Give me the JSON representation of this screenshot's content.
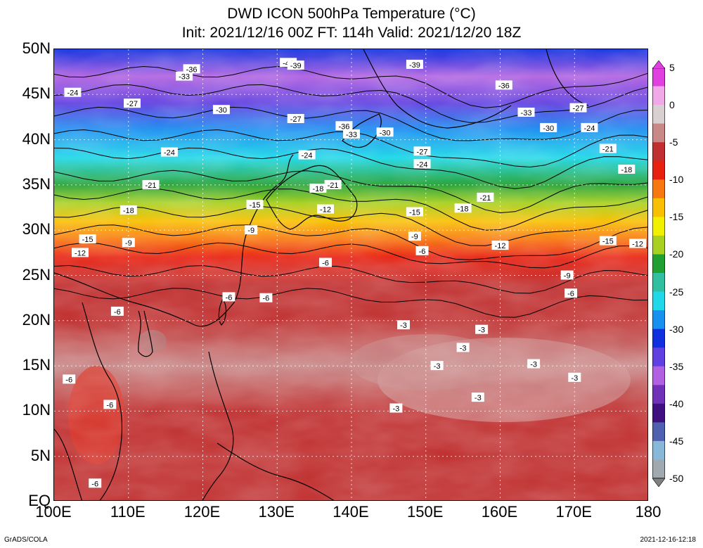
{
  "title": {
    "line1": "DWD ICON 500hPa Temperature (°C)",
    "line2": "Init: 2021/12/16 00Z  FT: 114h  Valid: 2021/12/20 18Z"
  },
  "axes": {
    "lat_labels": [
      "50N",
      "45N",
      "40N",
      "35N",
      "30N",
      "25N",
      "20N",
      "15N",
      "10N",
      "5N",
      "EQ"
    ],
    "lat_values": [
      50,
      45,
      40,
      35,
      30,
      25,
      20,
      15,
      10,
      5,
      0
    ],
    "lon_labels": [
      "100E",
      "110E",
      "120E",
      "130E",
      "140E",
      "150E",
      "160E",
      "170E",
      "180"
    ],
    "lon_values": [
      100,
      110,
      120,
      130,
      140,
      150,
      160,
      170,
      180
    ],
    "lat_range": [
      0,
      50
    ],
    "lon_range": [
      100,
      180
    ]
  },
  "colorbar": {
    "labels": [
      "5",
      "0",
      "-5",
      "-10",
      "-15",
      "-20",
      "-25",
      "-30",
      "-35",
      "-40",
      "-45",
      "-50"
    ],
    "values": [
      5,
      0,
      -5,
      -10,
      -15,
      -20,
      -25,
      -30,
      -35,
      -40,
      -45,
      -50
    ],
    "stops": [
      {
        "t": 5,
        "color": "#e040e0"
      },
      {
        "t": 2.5,
        "color": "#f0a8e8"
      },
      {
        "t": 0,
        "color": "#d8d0d0"
      },
      {
        "t": -2.5,
        "color": "#c88888"
      },
      {
        "t": -5,
        "color": "#c03030"
      },
      {
        "t": -7.5,
        "color": "#e82010"
      },
      {
        "t": -10,
        "color": "#f87810"
      },
      {
        "t": -12.5,
        "color": "#f8c000"
      },
      {
        "t": -15,
        "color": "#f0f000"
      },
      {
        "t": -17.5,
        "color": "#a8d020"
      },
      {
        "t": -20,
        "color": "#20a030"
      },
      {
        "t": -22.5,
        "color": "#30c0a0"
      },
      {
        "t": -25,
        "color": "#20d8e8"
      },
      {
        "t": -27.5,
        "color": "#1890f0"
      },
      {
        "t": -30,
        "color": "#1030e0"
      },
      {
        "t": -32.5,
        "color": "#6040e0"
      },
      {
        "t": -35,
        "color": "#b060e0"
      },
      {
        "t": -37.5,
        "color": "#7030b8"
      },
      {
        "t": -40,
        "color": "#401080"
      },
      {
        "t": -42.5,
        "color": "#5060b0"
      },
      {
        "t": -45,
        "color": "#88b8d8"
      },
      {
        "t": -47.5,
        "color": "#a0a8b0"
      },
      {
        "t": -50,
        "color": "#808080"
      }
    ]
  },
  "chart_data": {
    "type": "heatmap",
    "variable": "500hPa Temperature (°C)",
    "x_range": [
      100,
      180
    ],
    "y_range": [
      0,
      50
    ],
    "temperature_profile_by_latitude": [
      {
        "lat": 50,
        "t": -30
      },
      {
        "lat": 47,
        "t": -34
      },
      {
        "lat": 44,
        "t": -32
      },
      {
        "lat": 41,
        "t": -28
      },
      {
        "lat": 38,
        "t": -25
      },
      {
        "lat": 35,
        "t": -21
      },
      {
        "lat": 33,
        "t": -17
      },
      {
        "lat": 31,
        "t": -13
      },
      {
        "lat": 29,
        "t": -9
      },
      {
        "lat": 27,
        "t": -7
      },
      {
        "lat": 24,
        "t": -5.5
      },
      {
        "lat": 20,
        "t": -4.5
      },
      {
        "lat": 15,
        "t": -3.5
      },
      {
        "lat": 10,
        "t": -4
      },
      {
        "lat": 5,
        "t": -4.5
      },
      {
        "lat": 0,
        "t": -5
      }
    ],
    "contour_labels": [
      {
        "lon": 102.5,
        "lat": 45.2,
        "text": "-24"
      },
      {
        "lon": 110.5,
        "lat": 44.0,
        "text": "-27"
      },
      {
        "lon": 117.5,
        "lat": 47.0,
        "text": "-33"
      },
      {
        "lon": 118.5,
        "lat": 47.8,
        "text": "-36"
      },
      {
        "lon": 122.5,
        "lat": 43.3,
        "text": "-30"
      },
      {
        "lon": 131.5,
        "lat": 48.5,
        "text": "-42"
      },
      {
        "lon": 132.5,
        "lat": 48.2,
        "text": "-39"
      },
      {
        "lon": 148.5,
        "lat": 48.3,
        "text": "-39"
      },
      {
        "lon": 160.5,
        "lat": 46.0,
        "text": "-36"
      },
      {
        "lon": 163.5,
        "lat": 43.0,
        "text": "-33"
      },
      {
        "lon": 170.5,
        "lat": 43.5,
        "text": "-27"
      },
      {
        "lon": 132.5,
        "lat": 42.3,
        "text": "-27"
      },
      {
        "lon": 139.0,
        "lat": 41.5,
        "text": "-36"
      },
      {
        "lon": 140.0,
        "lat": 40.6,
        "text": "-33"
      },
      {
        "lon": 144.5,
        "lat": 40.8,
        "text": "-30"
      },
      {
        "lon": 166.5,
        "lat": 41.3,
        "text": "-30"
      },
      {
        "lon": 172.0,
        "lat": 41.3,
        "text": "-24"
      },
      {
        "lon": 174.5,
        "lat": 39.0,
        "text": "-21"
      },
      {
        "lon": 115.5,
        "lat": 38.6,
        "text": "-24"
      },
      {
        "lon": 134.0,
        "lat": 38.3,
        "text": "-24"
      },
      {
        "lon": 149.5,
        "lat": 38.7,
        "text": "-27"
      },
      {
        "lon": 149.5,
        "lat": 37.3,
        "text": "-24"
      },
      {
        "lon": 177.0,
        "lat": 36.7,
        "text": "-18"
      },
      {
        "lon": 113.0,
        "lat": 35.0,
        "text": "-21"
      },
      {
        "lon": 135.5,
        "lat": 34.6,
        "text": "-18"
      },
      {
        "lon": 137.5,
        "lat": 35.0,
        "text": "-21"
      },
      {
        "lon": 158.0,
        "lat": 33.6,
        "text": "-21"
      },
      {
        "lon": 110.0,
        "lat": 32.2,
        "text": "-18"
      },
      {
        "lon": 127.0,
        "lat": 32.8,
        "text": "-15"
      },
      {
        "lon": 136.5,
        "lat": 32.3,
        "text": "-12"
      },
      {
        "lon": 148.5,
        "lat": 32.0,
        "text": "-15"
      },
      {
        "lon": 155.0,
        "lat": 32.4,
        "text": "-18"
      },
      {
        "lon": 104.5,
        "lat": 29.0,
        "text": "-15"
      },
      {
        "lon": 126.5,
        "lat": 30.0,
        "text": "-9"
      },
      {
        "lon": 148.5,
        "lat": 29.3,
        "text": "-9"
      },
      {
        "lon": 110.0,
        "lat": 28.6,
        "text": "-9"
      },
      {
        "lon": 103.5,
        "lat": 27.5,
        "text": "-12"
      },
      {
        "lon": 149.5,
        "lat": 27.7,
        "text": "-6"
      },
      {
        "lon": 160.0,
        "lat": 28.3,
        "text": "-12"
      },
      {
        "lon": 174.5,
        "lat": 28.8,
        "text": "-15"
      },
      {
        "lon": 178.5,
        "lat": 28.5,
        "text": "-12"
      },
      {
        "lon": 136.5,
        "lat": 26.4,
        "text": "-6"
      },
      {
        "lon": 169.0,
        "lat": 25.0,
        "text": "-9"
      },
      {
        "lon": 169.5,
        "lat": 23.0,
        "text": "-6"
      },
      {
        "lon": 123.5,
        "lat": 22.6,
        "text": "-6"
      },
      {
        "lon": 128.5,
        "lat": 22.5,
        "text": "-6"
      },
      {
        "lon": 108.5,
        "lat": 21.0,
        "text": "-6"
      },
      {
        "lon": 147.0,
        "lat": 19.5,
        "text": "-3"
      },
      {
        "lon": 157.5,
        "lat": 19.0,
        "text": "-3"
      },
      {
        "lon": 155.0,
        "lat": 17.0,
        "text": "-3"
      },
      {
        "lon": 151.5,
        "lat": 15.0,
        "text": "-3"
      },
      {
        "lon": 164.5,
        "lat": 15.2,
        "text": "-3"
      },
      {
        "lon": 170.0,
        "lat": 13.7,
        "text": "-3"
      },
      {
        "lon": 102.0,
        "lat": 13.5,
        "text": "-6"
      },
      {
        "lon": 107.5,
        "lat": 10.7,
        "text": "-6"
      },
      {
        "lon": 157.0,
        "lat": 11.5,
        "text": "-3"
      },
      {
        "lon": 146.0,
        "lat": 10.3,
        "text": "-3"
      },
      {
        "lon": 105.5,
        "lat": 2.0,
        "text": "-6"
      }
    ]
  },
  "footer": {
    "credit": "GrADS/COLA",
    "timestamp": "2021-12-16-12:18"
  }
}
